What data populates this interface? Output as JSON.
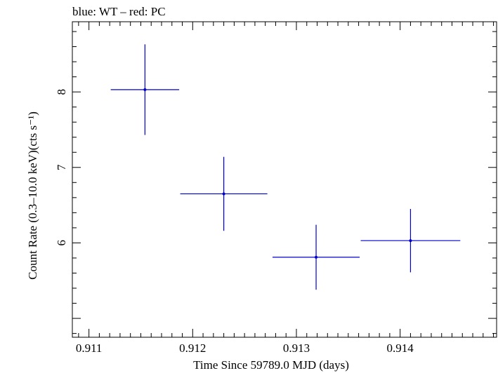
{
  "chart_data": {
    "type": "scatter",
    "title": "blue: WT – red: PC",
    "xlabel": "Time Since 59789.0 MJD (days)",
    "ylabel": "Count Rate (0.3–10.0 keV)(cts s⁻¹)",
    "xlim": [
      0.91084,
      0.91493
    ],
    "ylim": [
      4.75,
      8.93
    ],
    "x_ticks": [
      {
        "value": 0.911,
        "label": "0.911"
      },
      {
        "value": 0.912,
        "label": "0.912"
      },
      {
        "value": 0.913,
        "label": "0.913"
      },
      {
        "value": 0.914,
        "label": "0.914"
      }
    ],
    "y_ticks": [
      {
        "value": 6,
        "label": "6"
      },
      {
        "value": 7,
        "label": "7"
      },
      {
        "value": 8,
        "label": "8"
      }
    ],
    "series": [
      {
        "name": "WT",
        "color": "#0000cc",
        "points": [
          {
            "x": 0.91154,
            "y": 8.03,
            "xerr": 0.00033,
            "yerr_lo": 0.6,
            "yerr_hi": 0.6
          },
          {
            "x": 0.9123,
            "y": 6.65,
            "xerr": 0.00042,
            "yerr_lo": 0.49,
            "yerr_hi": 0.49
          },
          {
            "x": 0.91319,
            "y": 5.81,
            "xerr": 0.00042,
            "yerr_lo": 0.43,
            "yerr_hi": 0.43
          },
          {
            "x": 0.9141,
            "y": 6.03,
            "xerr": 0.00048,
            "yerr_lo": 0.42,
            "yerr_hi": 0.42
          }
        ]
      }
    ],
    "grid": false
  }
}
